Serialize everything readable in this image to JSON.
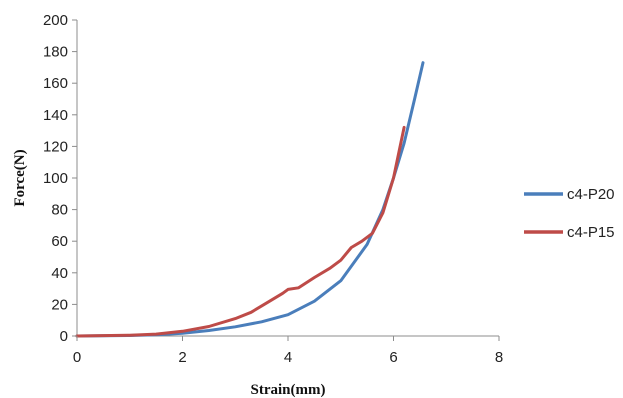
{
  "chart_data": {
    "type": "line",
    "xlabel": "Strain(mm)",
    "ylabel": "Force(N)",
    "xlim": [
      0,
      8
    ],
    "ylim": [
      0,
      200
    ],
    "xticks": [
      0,
      2,
      4,
      6,
      8
    ],
    "yticks": [
      0,
      20,
      40,
      60,
      80,
      100,
      120,
      140,
      160,
      180,
      200
    ],
    "grid": false,
    "legend": "right",
    "series": [
      {
        "name": "c4-P20",
        "color": "#4a7ebb",
        "x": [
          0,
          1.0,
          1.5,
          2.0,
          2.5,
          3.0,
          3.5,
          4.0,
          4.5,
          5.0,
          5.5,
          5.8,
          6.0,
          6.2,
          6.4,
          6.56
        ],
        "y": [
          0,
          0.3,
          0.8,
          1.8,
          3.5,
          5.8,
          9.0,
          13.5,
          22,
          35,
          58,
          80,
          100,
          122,
          150,
          173
        ]
      },
      {
        "name": "c4-P15",
        "color": "#be4b48",
        "x": [
          0,
          1.0,
          1.5,
          2.0,
          2.5,
          3.0,
          3.3,
          3.6,
          3.9,
          4.0,
          4.2,
          4.5,
          4.8,
          5.0,
          5.2,
          5.4,
          5.6,
          5.8,
          6.0,
          6.1,
          6.2
        ],
        "y": [
          0,
          0.5,
          1.2,
          3.0,
          6.0,
          11.0,
          15.0,
          21.0,
          27.0,
          29.5,
          30.5,
          37,
          43,
          48,
          56,
          60,
          65,
          78,
          100,
          116,
          132
        ]
      }
    ]
  }
}
